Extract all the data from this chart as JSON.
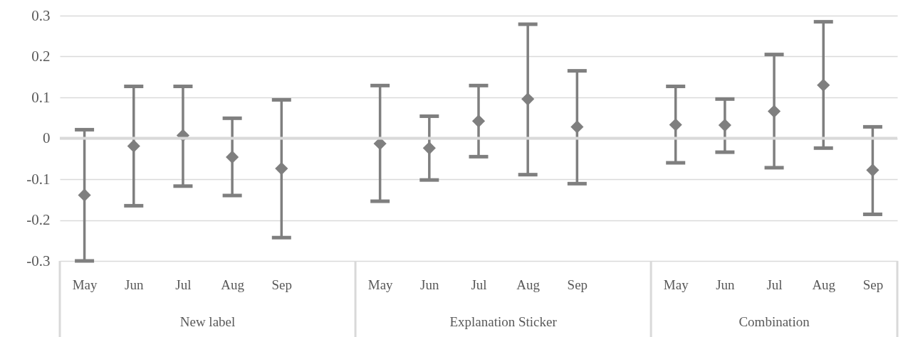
{
  "chart_data": {
    "type": "scatter",
    "categories": [
      "May",
      "Jun",
      "Jul",
      "Aug",
      "Sep",
      null,
      "May",
      "Jun",
      "Jul",
      "Aug",
      "Sep",
      null,
      "May",
      "Jun",
      "Jul",
      "Aug",
      "Sep"
    ],
    "series": [
      {
        "color": "#7f7f7f",
        "values": [
          -0.139,
          -0.019,
          0.007,
          -0.046,
          -0.074,
          null,
          -0.013,
          -0.024,
          0.042,
          0.096,
          0.028,
          null,
          0.033,
          0.032,
          0.066,
          0.13,
          -0.078
        ],
        "errors": [
          [
            -0.3,
            0.021
          ],
          [
            -0.165,
            0.127
          ],
          [
            -0.117,
            0.127
          ],
          [
            -0.14,
            0.049
          ],
          [
            -0.243,
            0.094
          ],
          null,
          [
            -0.154,
            0.129
          ],
          [
            -0.102,
            0.054
          ],
          [
            -0.045,
            0.129
          ],
          [
            -0.089,
            0.279
          ],
          [
            -0.111,
            0.165
          ],
          null,
          [
            -0.06,
            0.127
          ],
          [
            -0.034,
            0.096
          ],
          [
            -0.072,
            0.205
          ],
          [
            -0.024,
            0.285
          ],
          [
            -0.186,
            0.028
          ]
        ]
      }
    ],
    "annotations": [
      "New label",
      "Explanation Sticker",
      "Combination"
    ],
    "ylim": [
      -0.3,
      0.3
    ],
    "yticks": [
      -0.3,
      -0.2,
      -0.1,
      0,
      0.1,
      0.2,
      0.3
    ],
    "ref_lines": [
      {
        "axis": "y",
        "value": 0,
        "color": "#d9d9d9"
      }
    ],
    "grid": "y",
    "marker": "diamond"
  }
}
